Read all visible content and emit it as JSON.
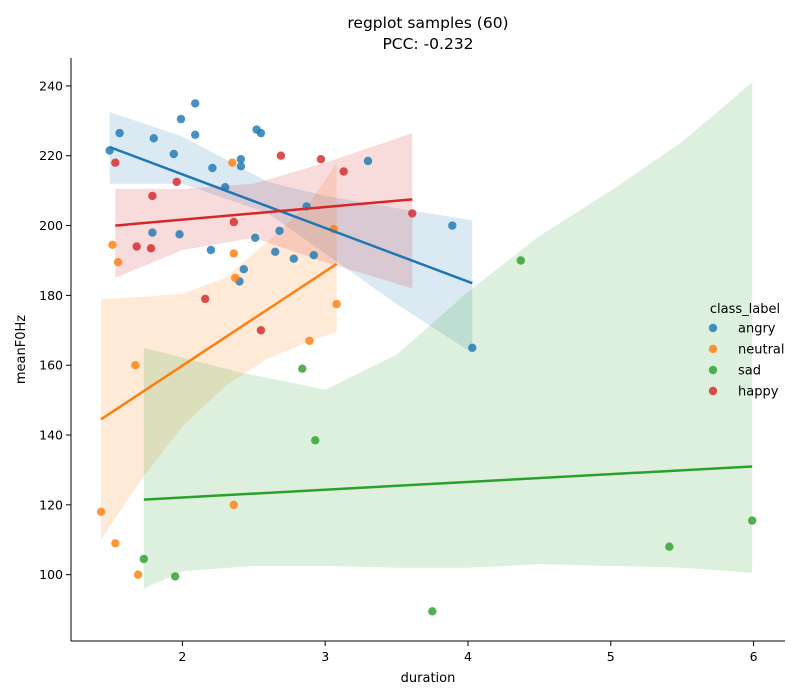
{
  "chart_data": {
    "type": "scatter",
    "title": [
      "regplot samples (60)",
      "PCC: -0.232"
    ],
    "xlabel": "duration",
    "ylabel": "meanF0Hz",
    "xlim": [
      1.22,
      6.22
    ],
    "ylim": [
      81,
      248
    ],
    "xticks": [
      2,
      3,
      4,
      5,
      6
    ],
    "yticks": [
      100,
      120,
      140,
      160,
      180,
      200,
      220,
      240
    ],
    "legend": {
      "title": "class_label",
      "position": "right"
    },
    "series": [
      {
        "name": "angry",
        "color": "#1f77b4",
        "points": [
          [
            1.49,
            221.5
          ],
          [
            1.56,
            226.5
          ],
          [
            1.79,
            198
          ],
          [
            1.8,
            225
          ],
          [
            1.94,
            220.5
          ],
          [
            1.98,
            197.5
          ],
          [
            1.99,
            230.5
          ],
          [
            2.09,
            235
          ],
          [
            2.09,
            226
          ],
          [
            2.2,
            193
          ],
          [
            2.21,
            216.5
          ],
          [
            2.3,
            211
          ],
          [
            2.41,
            219
          ],
          [
            2.41,
            217
          ],
          [
            2.4,
            184
          ],
          [
            2.43,
            187.5
          ],
          [
            2.51,
            196.5
          ],
          [
            2.52,
            227.5
          ],
          [
            2.55,
            226.5
          ],
          [
            2.65,
            192.5
          ],
          [
            2.68,
            198.5
          ],
          [
            2.78,
            190.5
          ],
          [
            2.87,
            205.5
          ],
          [
            2.92,
            191.5
          ],
          [
            3.3,
            218.5
          ],
          [
            3.89,
            200
          ],
          [
            4.03,
            165
          ]
        ],
        "fit": {
          "x": [
            1.49,
            4.03
          ],
          "y": [
            222.5,
            183.5
          ]
        },
        "ci_upper": [
          [
            1.49,
            232.5
          ],
          [
            2.0,
            225.5
          ],
          [
            2.6,
            212.5
          ],
          [
            3.0,
            208.5
          ],
          [
            3.5,
            205
          ],
          [
            4.03,
            201.5
          ]
        ],
        "ci_lower": [
          [
            1.49,
            212
          ],
          [
            2.0,
            212
          ],
          [
            2.6,
            203.5
          ],
          [
            3.0,
            192
          ],
          [
            3.5,
            177.5
          ],
          [
            4.03,
            163.5
          ]
        ]
      },
      {
        "name": "neutral",
        "color": "#ff7f0e",
        "points": [
          [
            1.43,
            118
          ],
          [
            1.51,
            194.5
          ],
          [
            1.53,
            109
          ],
          [
            1.55,
            189.5
          ],
          [
            1.67,
            160
          ],
          [
            1.69,
            100
          ],
          [
            2.35,
            218
          ],
          [
            2.36,
            192
          ],
          [
            2.36,
            120
          ],
          [
            2.37,
            185
          ],
          [
            2.89,
            167
          ],
          [
            3.06,
            199
          ],
          [
            3.08,
            177.5
          ]
        ],
        "fit": {
          "x": [
            1.43,
            3.08
          ],
          "y": [
            144.5,
            189
          ]
        },
        "ci_upper": [
          [
            1.43,
            179
          ],
          [
            1.7,
            179.5
          ],
          [
            2.0,
            180.5
          ],
          [
            2.3,
            185
          ],
          [
            2.6,
            195.5
          ],
          [
            2.9,
            207
          ],
          [
            3.08,
            218
          ]
        ],
        "ci_lower": [
          [
            1.43,
            110
          ],
          [
            1.7,
            126.5
          ],
          [
            2.0,
            142.5
          ],
          [
            2.3,
            154
          ],
          [
            2.6,
            162
          ],
          [
            2.9,
            167
          ],
          [
            3.08,
            169.5
          ]
        ]
      },
      {
        "name": "sad",
        "color": "#2ca02c",
        "points": [
          [
            1.73,
            104.5
          ],
          [
            1.95,
            99.5
          ],
          [
            2.84,
            159
          ],
          [
            2.93,
            138.5
          ],
          [
            3.75,
            89.5
          ],
          [
            4.37,
            190
          ],
          [
            5.41,
            108
          ],
          [
            5.99,
            115.5
          ]
        ],
        "fit": {
          "x": [
            1.73,
            5.99
          ],
          "y": [
            121.5,
            131
          ]
        },
        "ci_upper": [
          [
            1.73,
            165
          ],
          [
            2.4,
            158
          ],
          [
            3.0,
            153
          ],
          [
            3.5,
            163
          ],
          [
            4.0,
            181
          ],
          [
            4.5,
            197
          ],
          [
            5.0,
            210
          ],
          [
            5.5,
            224
          ],
          [
            5.99,
            241
          ]
        ],
        "ci_lower": [
          [
            1.73,
            96
          ],
          [
            2.0,
            101
          ],
          [
            2.5,
            102.5
          ],
          [
            3.0,
            102.5
          ],
          [
            3.5,
            102
          ],
          [
            4.0,
            102
          ],
          [
            4.5,
            103
          ],
          [
            5.0,
            102.5
          ],
          [
            5.5,
            102
          ],
          [
            5.99,
            100.5
          ]
        ]
      },
      {
        "name": "happy",
        "color": "#d62728",
        "points": [
          [
            1.53,
            218
          ],
          [
            1.68,
            194
          ],
          [
            1.78,
            193.5
          ],
          [
            1.79,
            208.5
          ],
          [
            1.96,
            212.5
          ],
          [
            2.16,
            179
          ],
          [
            2.36,
            201
          ],
          [
            2.55,
            170
          ],
          [
            2.69,
            220
          ],
          [
            2.97,
            219
          ],
          [
            3.13,
            215.5
          ],
          [
            3.61,
            203.5
          ]
        ],
        "fit": {
          "x": [
            1.53,
            3.61
          ],
          "y": [
            200,
            207.5
          ]
        },
        "ci_upper": [
          [
            1.53,
            210.5
          ],
          [
            2.0,
            210.5
          ],
          [
            2.5,
            212
          ],
          [
            3.0,
            218
          ],
          [
            3.61,
            226.5
          ]
        ],
        "ci_lower": [
          [
            1.53,
            185
          ],
          [
            2.0,
            193
          ],
          [
            2.5,
            196.5
          ],
          [
            3.0,
            189.5
          ],
          [
            3.61,
            182
          ]
        ]
      }
    ]
  }
}
